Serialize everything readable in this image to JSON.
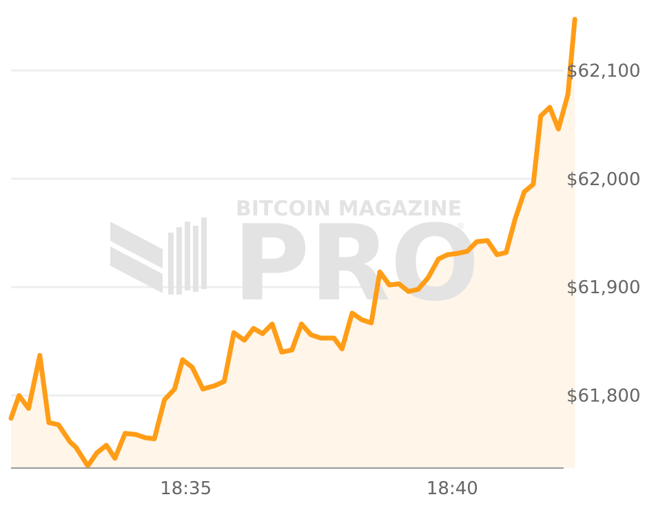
{
  "chart_data": {
    "type": "area",
    "title": "",
    "xlabel": "",
    "ylabel": "",
    "x_ticks": [
      {
        "t": 35,
        "label": "18:35"
      },
      {
        "t": 40,
        "label": "18:40"
      }
    ],
    "y_ticks": [
      {
        "value": 61800,
        "label": "$61,800"
      },
      {
        "value": 61900,
        "label": "$61,900"
      },
      {
        "value": 62000,
        "label": "$62,000"
      },
      {
        "value": 62100,
        "label": "$62,100"
      }
    ],
    "xlim": [
      31.72,
      42.09
    ],
    "ylim": [
      61733,
      62146
    ],
    "grid": true,
    "watermark": {
      "brand": "BITCOIN MAGAZINE",
      "product": "PRO",
      "mark": "®"
    },
    "colors": {
      "line": "#ff9d17",
      "fill": "#fff5e8",
      "grid": "#eeeeee",
      "axis": "#999999",
      "tick_text": "#666666",
      "watermark": "#e3e3e3"
    },
    "series": [
      {
        "points": [
          [
            31.72,
            61779
          ],
          [
            31.87,
            61800
          ],
          [
            32.05,
            61788
          ],
          [
            32.26,
            61837
          ],
          [
            32.43,
            61775
          ],
          [
            32.61,
            61773
          ],
          [
            32.83,
            61757
          ],
          [
            32.94,
            61752
          ],
          [
            33.16,
            61735
          ],
          [
            33.33,
            61747
          ],
          [
            33.51,
            61754
          ],
          [
            33.67,
            61742
          ],
          [
            33.86,
            61765
          ],
          [
            34.06,
            61764
          ],
          [
            34.24,
            61761
          ],
          [
            34.41,
            61760
          ],
          [
            34.6,
            61796
          ],
          [
            34.79,
            61806
          ],
          [
            34.94,
            61833
          ],
          [
            35.12,
            61826
          ],
          [
            35.32,
            61806
          ],
          [
            35.54,
            61809
          ],
          [
            35.72,
            61813
          ],
          [
            35.9,
            61858
          ],
          [
            36.1,
            61851
          ],
          [
            36.27,
            61862
          ],
          [
            36.44,
            61857
          ],
          [
            36.62,
            61866
          ],
          [
            36.8,
            61840
          ],
          [
            36.99,
            61842
          ],
          [
            37.17,
            61866
          ],
          [
            37.35,
            61856
          ],
          [
            37.53,
            61853
          ],
          [
            37.78,
            61853
          ],
          [
            37.93,
            61843
          ],
          [
            38.12,
            61876
          ],
          [
            38.3,
            61870
          ],
          [
            38.48,
            61867
          ],
          [
            38.64,
            61914
          ],
          [
            38.82,
            61902
          ],
          [
            39.0,
            61903
          ],
          [
            39.18,
            61896
          ],
          [
            39.36,
            61898
          ],
          [
            39.55,
            61909
          ],
          [
            39.74,
            61926
          ],
          [
            39.91,
            61930
          ],
          [
            40.08,
            61931
          ],
          [
            40.28,
            61933
          ],
          [
            40.46,
            61942
          ],
          [
            40.66,
            61943
          ],
          [
            40.84,
            61930
          ],
          [
            41.01,
            61932
          ],
          [
            41.18,
            61963
          ],
          [
            41.35,
            61988
          ],
          [
            41.52,
            61995
          ],
          [
            41.66,
            62058
          ],
          [
            41.83,
            62066
          ],
          [
            41.99,
            62046
          ],
          [
            42.17,
            62078
          ],
          [
            42.3,
            62148
          ]
        ]
      }
    ]
  }
}
